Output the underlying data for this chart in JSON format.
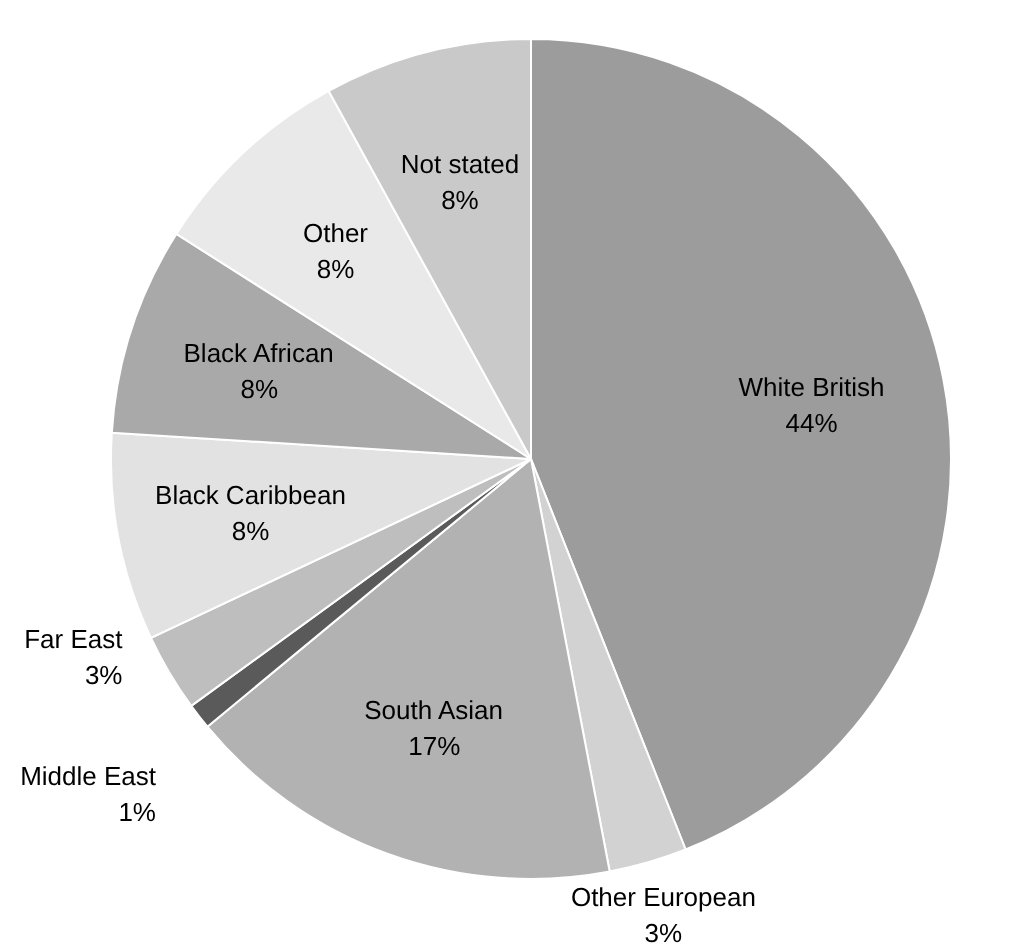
{
  "chart_data": {
    "type": "pie",
    "categories": [
      "White British",
      "Other European",
      "South Asian",
      "Middle East",
      "Far East",
      "Black Caribbean",
      "Black African",
      "Other",
      "Not stated"
    ],
    "values": [
      44,
      3,
      17,
      1,
      3,
      8,
      8,
      8,
      8
    ],
    "value_labels": [
      "44%",
      "3%",
      "17%",
      "1%",
      "3%",
      "8%",
      "8%",
      "8%",
      "8%"
    ],
    "colors": [
      "#9c9c9c",
      "#d2d2d2",
      "#b2b2b2",
      "#5a5a5a",
      "#bebebe",
      "#e2e2e2",
      "#a9a9a9",
      "#e9e9e9",
      "#c9c9c9"
    ]
  }
}
